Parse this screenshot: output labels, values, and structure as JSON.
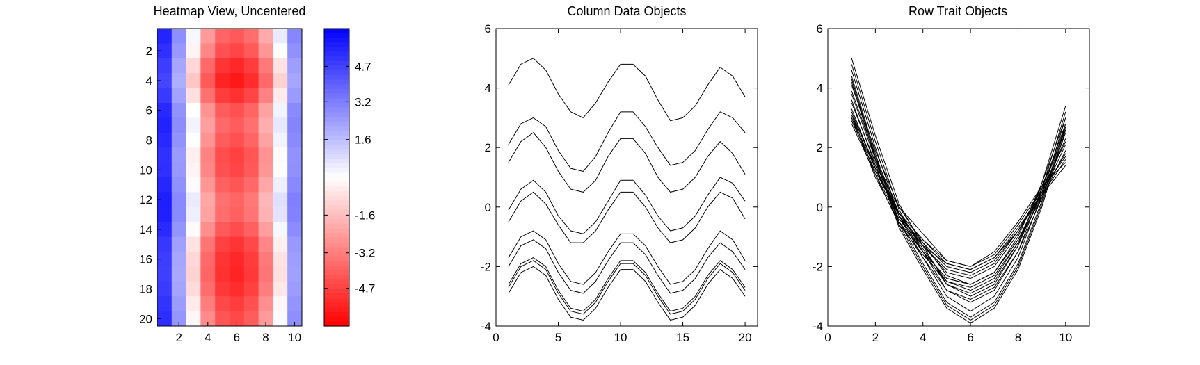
{
  "chart_data": [
    {
      "type": "heatmap",
      "title": "Heatmap View, Uncentered",
      "xlabel": "",
      "ylabel": "",
      "xlim": [
        0.5,
        10.5
      ],
      "ylim": [
        0.5,
        20.5
      ],
      "x_ticks": [
        2,
        4,
        6,
        8,
        10
      ],
      "y_ticks": [
        2,
        4,
        6,
        8,
        10,
        12,
        14,
        16,
        18,
        20
      ],
      "y_reversed": true,
      "rows": 20,
      "cols": 10,
      "colorscale": {
        "low": "#ff0000",
        "mid": "#ffffff",
        "high": "#0000ff"
      },
      "clim": [
        -6.3,
        6.3
      ],
      "colorbar_ticks": [
        "4.7",
        "3.2",
        "1.6",
        "-1.6",
        "-3.2",
        "-4.7"
      ],
      "column_profile": [
        5.0,
        2.4,
        -0.6,
        -3.3,
        -4.6,
        -4.9,
        -4.4,
        -2.9,
        -0.3,
        2.6
      ],
      "row_offsets": [
        0.8,
        0.3,
        -0.4,
        -0.8,
        -0.2,
        0.6,
        0.9,
        0.6,
        0.2,
        0.3,
        0.7,
        1.1,
        1.0,
        0.5,
        -0.1,
        -0.4,
        -0.5,
        -0.3,
        0.1,
        0.4
      ]
    },
    {
      "type": "line",
      "title": "Column Data Objects",
      "xlabel": "",
      "ylabel": "",
      "xlim": [
        0,
        21
      ],
      "ylim": [
        -4,
        6
      ],
      "x_ticks": [
        0,
        5,
        10,
        15,
        20
      ],
      "y_ticks": [
        -4,
        -2,
        0,
        2,
        4,
        6
      ],
      "x": [
        1,
        2,
        3,
        4,
        5,
        6,
        7,
        8,
        9,
        10,
        11,
        12,
        13,
        14,
        15,
        16,
        17,
        18,
        19,
        20
      ],
      "series": [
        {
          "values": [
            4.1,
            4.8,
            5.0,
            4.6,
            3.8,
            3.2,
            3.0,
            3.5,
            4.2,
            4.8,
            4.8,
            4.4,
            3.6,
            2.9,
            3.0,
            3.4,
            4.1,
            4.7,
            4.4,
            3.7
          ]
        },
        {
          "values": [
            2.1,
            2.8,
            3.0,
            2.7,
            1.9,
            1.3,
            1.2,
            1.7,
            2.5,
            3.2,
            3.2,
            2.7,
            2.0,
            1.4,
            1.5,
            1.9,
            2.6,
            3.2,
            3.0,
            2.5
          ]
        },
        {
          "values": [
            1.5,
            2.2,
            2.5,
            2.0,
            1.2,
            0.6,
            0.5,
            0.9,
            1.7,
            2.3,
            2.3,
            1.8,
            1.0,
            0.5,
            0.6,
            1.0,
            1.7,
            2.2,
            1.8,
            1.1
          ]
        },
        {
          "values": [
            -0.1,
            0.6,
            0.9,
            0.5,
            -0.3,
            -0.8,
            -0.9,
            -0.5,
            0.2,
            0.9,
            0.9,
            0.4,
            -0.3,
            -0.8,
            -0.7,
            -0.3,
            0.4,
            1.0,
            0.8,
            0.2
          ]
        },
        {
          "values": [
            -0.5,
            0.2,
            0.5,
            0.1,
            -0.6,
            -1.2,
            -1.2,
            -0.8,
            -0.1,
            0.5,
            0.5,
            0.0,
            -0.7,
            -1.2,
            -1.1,
            -0.7,
            0.0,
            0.5,
            0.3,
            -0.4
          ]
        },
        {
          "values": [
            -1.7,
            -1.0,
            -0.8,
            -1.1,
            -1.9,
            -2.5,
            -2.6,
            -2.2,
            -1.5,
            -0.9,
            -0.9,
            -1.3,
            -2.0,
            -2.6,
            -2.5,
            -2.1,
            -1.4,
            -0.8,
            -1.1,
            -1.8
          ]
        },
        {
          "values": [
            -2.0,
            -1.3,
            -1.1,
            -1.4,
            -2.2,
            -2.8,
            -2.9,
            -2.5,
            -1.8,
            -1.2,
            -1.2,
            -1.6,
            -2.3,
            -2.9,
            -2.8,
            -2.4,
            -1.7,
            -1.2,
            -1.5,
            -2.1
          ]
        },
        {
          "values": [
            -2.6,
            -1.9,
            -1.7,
            -2.0,
            -2.8,
            -3.4,
            -3.5,
            -3.1,
            -2.4,
            -1.8,
            -1.8,
            -2.2,
            -2.9,
            -3.5,
            -3.4,
            -3.0,
            -2.3,
            -1.8,
            -2.1,
            -2.7
          ]
        },
        {
          "values": [
            -2.7,
            -2.0,
            -1.8,
            -2.1,
            -2.9,
            -3.5,
            -3.6,
            -3.2,
            -2.5,
            -1.9,
            -1.9,
            -2.3,
            -3.0,
            -3.6,
            -3.5,
            -3.1,
            -2.4,
            -1.9,
            -2.2,
            -2.8
          ]
        },
        {
          "values": [
            -2.9,
            -2.2,
            -2.0,
            -2.3,
            -3.1,
            -3.7,
            -3.8,
            -3.4,
            -2.7,
            -2.1,
            -2.1,
            -2.5,
            -3.2,
            -3.8,
            -3.7,
            -3.3,
            -2.6,
            -2.1,
            -2.4,
            -3.0
          ]
        }
      ]
    },
    {
      "type": "line",
      "title": "Row Trait Objects",
      "xlabel": "",
      "ylabel": "",
      "xlim": [
        0,
        11
      ],
      "ylim": [
        -4,
        6
      ],
      "x_ticks": [
        0,
        2,
        4,
        6,
        8,
        10
      ],
      "y_ticks": [
        -4,
        -2,
        0,
        2,
        4,
        6
      ],
      "x": [
        1,
        2,
        3,
        4,
        5,
        6,
        7,
        8,
        9,
        10
      ],
      "series": [
        {
          "values": [
            5.0,
            2.4,
            0.1,
            -1.3,
            -2.6,
            -3.0,
            -2.6,
            -1.3,
            0.8,
            3.4
          ]
        },
        {
          "values": [
            4.8,
            2.2,
            -0.1,
            -1.5,
            -2.8,
            -3.2,
            -2.8,
            -1.5,
            0.6,
            3.2
          ]
        },
        {
          "values": [
            4.6,
            2.0,
            -0.3,
            -1.7,
            -3.0,
            -3.5,
            -3.0,
            -1.7,
            0.4,
            3.0
          ]
        },
        {
          "values": [
            4.4,
            1.8,
            -0.5,
            -1.9,
            -3.2,
            -3.7,
            -3.2,
            -1.9,
            0.2,
            2.8
          ]
        },
        {
          "values": [
            4.3,
            1.7,
            -0.6,
            -2.0,
            -3.3,
            -3.8,
            -3.3,
            -2.0,
            0.1,
            2.7
          ]
        },
        {
          "values": [
            4.2,
            1.6,
            -0.7,
            -2.1,
            -3.4,
            -3.9,
            -3.4,
            -2.1,
            0.0,
            2.6
          ]
        },
        {
          "values": [
            4.1,
            1.9,
            0.0,
            -1.2,
            -2.3,
            -2.6,
            -2.2,
            -1.0,
            0.8,
            3.0
          ]
        },
        {
          "values": [
            3.9,
            1.7,
            -0.2,
            -1.4,
            -2.5,
            -2.8,
            -2.4,
            -1.2,
            0.6,
            2.8
          ]
        },
        {
          "values": [
            3.8,
            1.6,
            -0.3,
            -1.5,
            -2.6,
            -2.9,
            -2.5,
            -1.3,
            0.5,
            2.7
          ]
        },
        {
          "values": [
            3.6,
            1.4,
            -0.5,
            -1.7,
            -2.8,
            -3.1,
            -2.7,
            -1.5,
            0.3,
            2.5
          ]
        },
        {
          "values": [
            3.5,
            1.5,
            -0.2,
            -1.3,
            -2.2,
            -2.4,
            -2.0,
            -0.9,
            0.7,
            2.6
          ]
        },
        {
          "values": [
            3.3,
            1.3,
            -0.4,
            -1.5,
            -2.4,
            -2.6,
            -2.2,
            -1.1,
            0.5,
            2.3
          ]
        },
        {
          "values": [
            3.1,
            1.1,
            -0.6,
            -1.6,
            -2.5,
            -2.7,
            -2.3,
            -1.2,
            0.4,
            2.1
          ]
        },
        {
          "values": [
            3.0,
            1.0,
            -0.5,
            -1.5,
            -2.4,
            -2.6,
            -2.2,
            -1.1,
            0.3,
            1.9
          ]
        },
        {
          "values": [
            3.2,
            1.3,
            -0.3,
            -1.3,
            -2.1,
            -2.3,
            -1.9,
            -0.8,
            0.6,
            2.2
          ]
        },
        {
          "values": [
            2.9,
            1.2,
            -0.3,
            -1.2,
            -2.0,
            -2.2,
            -1.8,
            -0.8,
            0.5,
            1.8
          ]
        },
        {
          "values": [
            2.8,
            1.1,
            -0.4,
            -1.3,
            -1.9,
            -2.1,
            -1.7,
            -0.8,
            0.4,
            1.6
          ]
        },
        {
          "values": [
            3.0,
            1.3,
            -0.2,
            -1.1,
            -1.8,
            -2.0,
            -1.6,
            -0.6,
            0.6,
            1.7
          ]
        },
        {
          "values": [
            2.9,
            1.2,
            -0.2,
            -1.1,
            -1.9,
            -2.1,
            -1.7,
            -0.7,
            0.4,
            1.4
          ]
        },
        {
          "values": [
            3.1,
            1.4,
            0.0,
            -0.9,
            -1.8,
            -2.0,
            -1.5,
            -0.5,
            0.7,
            1.5
          ]
        }
      ]
    }
  ]
}
